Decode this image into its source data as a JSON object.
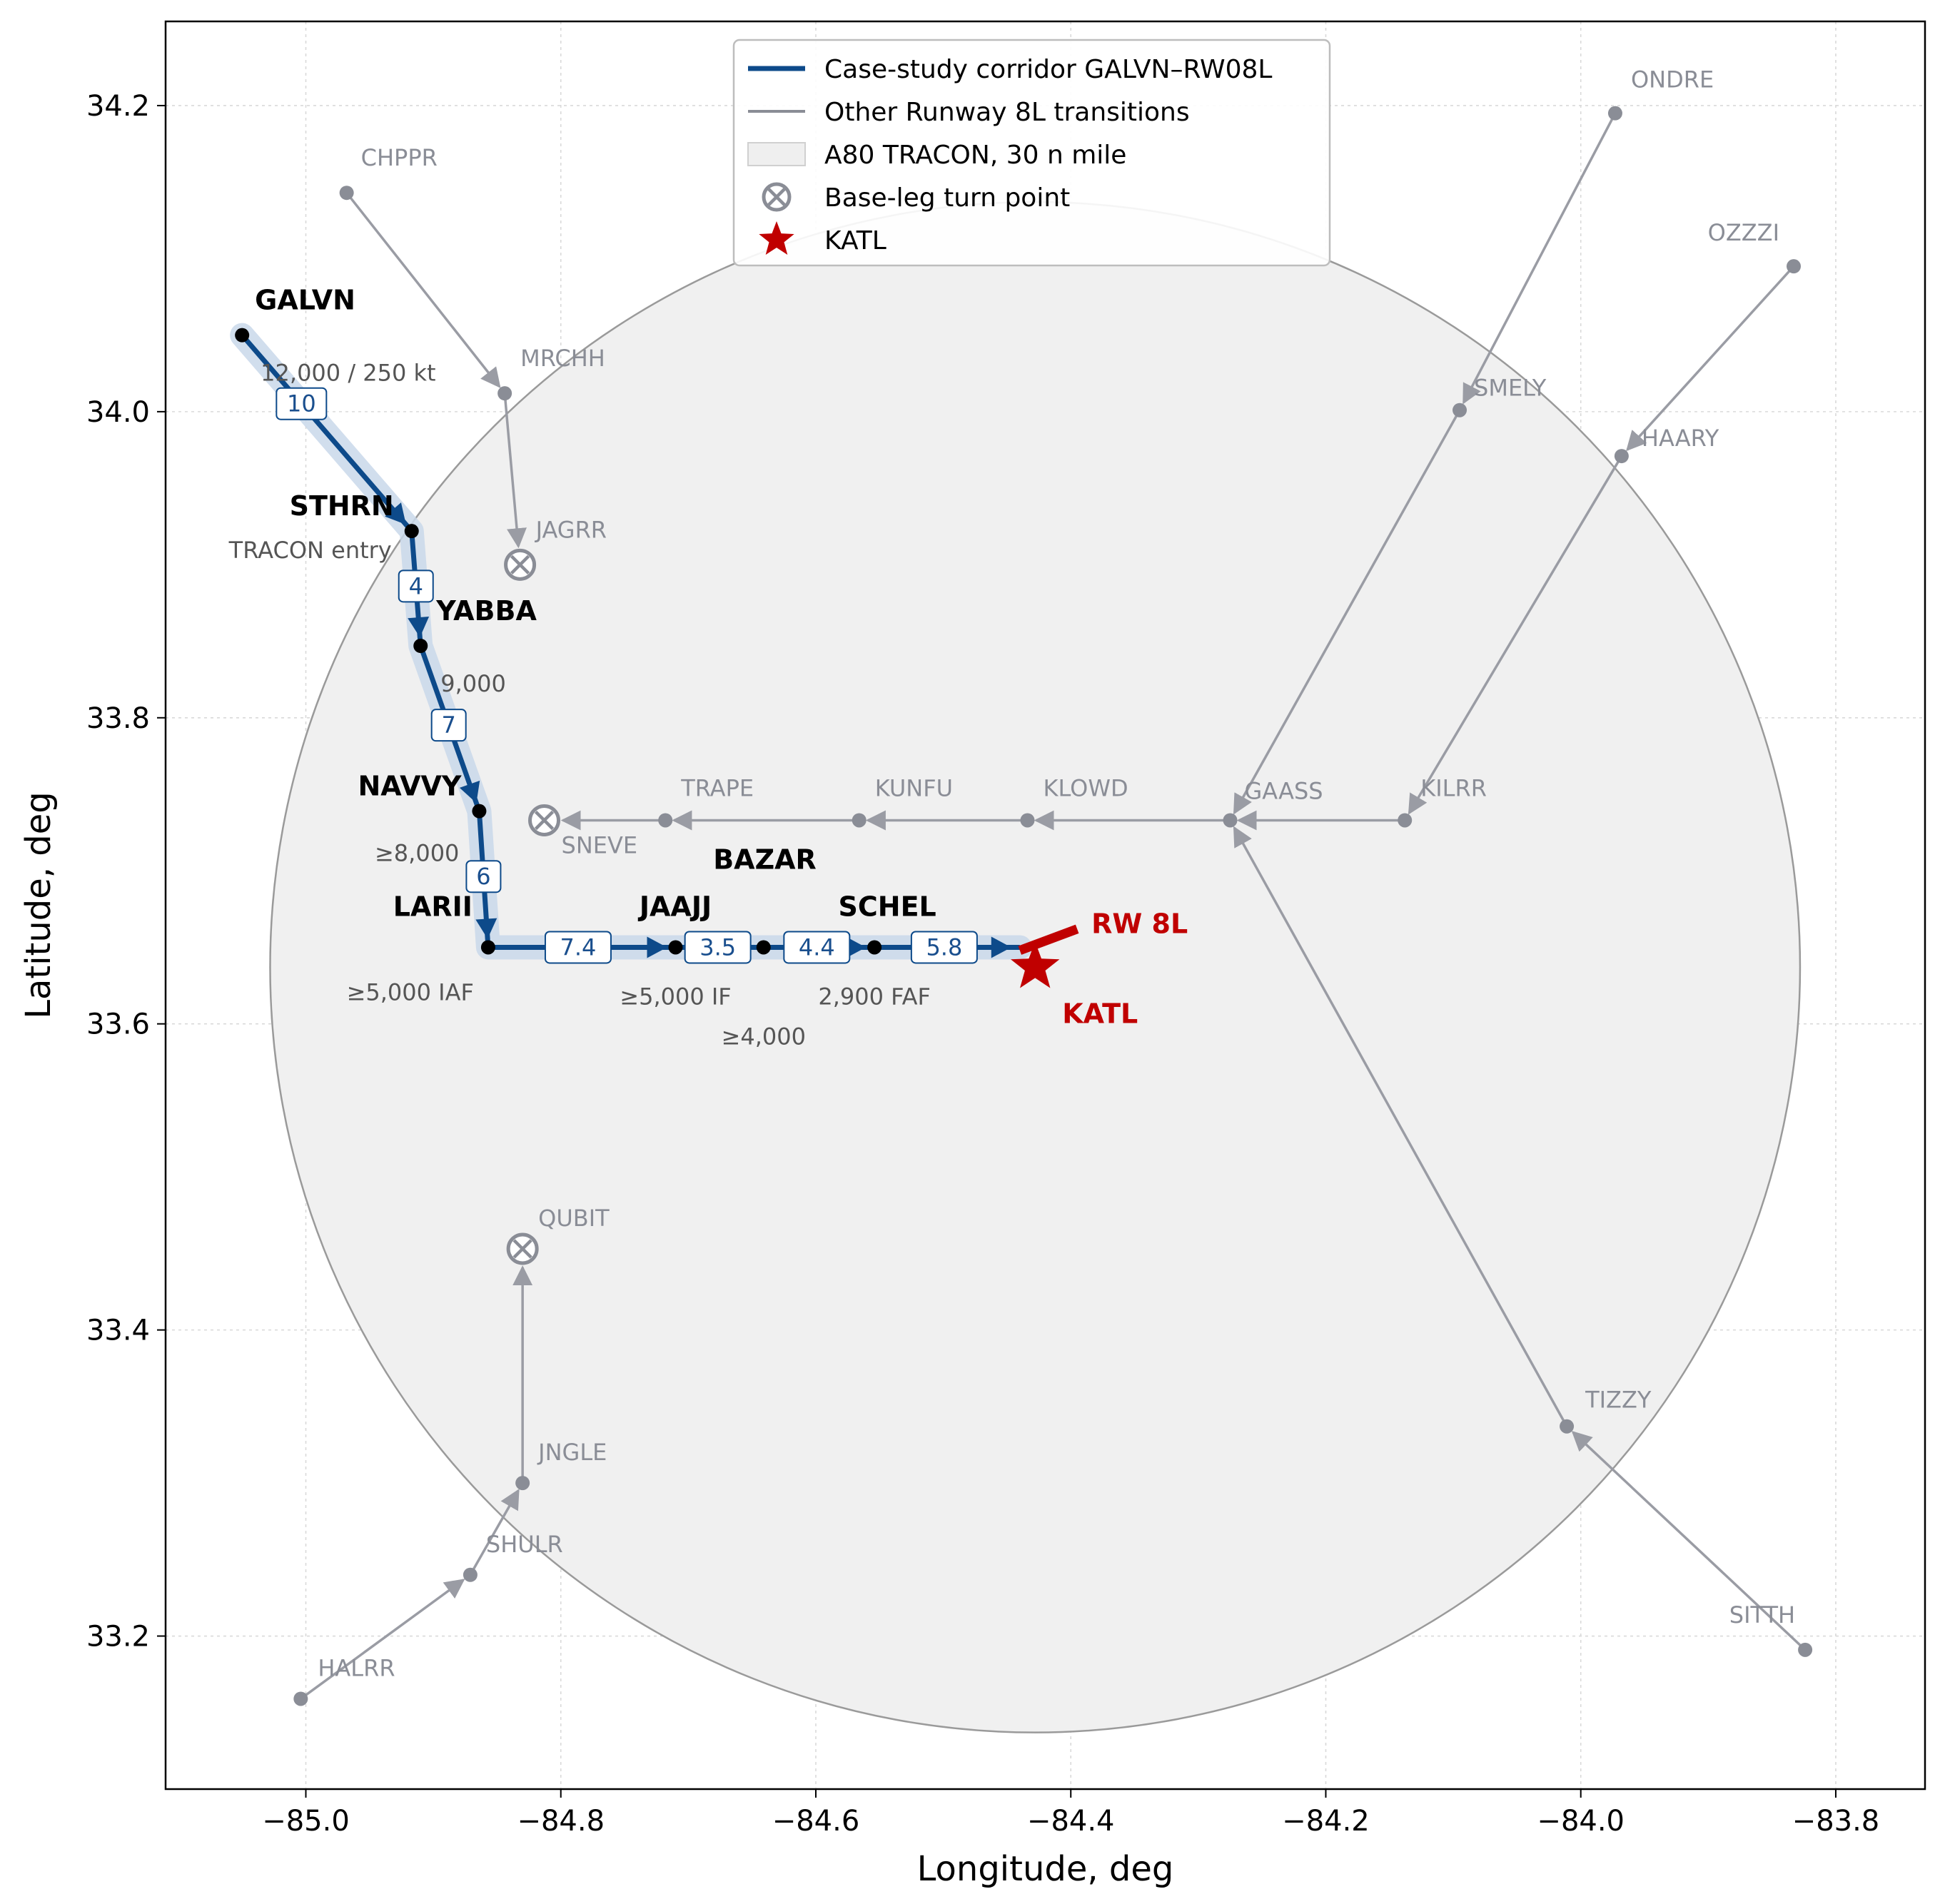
{
  "chart_data": {
    "type": "scatter",
    "xlabel": "Longitude, deg",
    "ylabel": "Latitude, deg",
    "xlim": [
      -85.11,
      -83.73
    ],
    "ylim": [
      33.1,
      34.255
    ],
    "xticks": [
      -85.0,
      -84.8,
      -84.6,
      -84.4,
      -84.2,
      -84.0,
      -83.8
    ],
    "xtick_labels": [
      "−85.0",
      "−84.8",
      "−84.6",
      "−84.4",
      "−84.2",
      "−84.0",
      "−83.8"
    ],
    "yticks": [
      33.2,
      33.4,
      33.6,
      33.8,
      34.0,
      34.2
    ],
    "ytick_labels": [
      "33.2",
      "33.4",
      "33.6",
      "33.8",
      "34.0",
      "34.2"
    ],
    "grid": true,
    "legend_position": "top-center",
    "legend": [
      {
        "label": "Case-study corridor GALVN–RW08L",
        "kind": "line",
        "color": "#0d4a8a"
      },
      {
        "label": "Other Runway 8L transitions",
        "kind": "line",
        "color": "#8a8d96"
      },
      {
        "label": "A80 TRACON, 30 n mile",
        "kind": "patch",
        "color": "#efefef"
      },
      {
        "label": "Base-leg turn point",
        "kind": "turn-marker",
        "color": "#8a8d96"
      },
      {
        "label": "KATL",
        "kind": "star",
        "color": "#c00000"
      }
    ],
    "tracon": {
      "center": [
        -84.428,
        33.637
      ],
      "radius_deg_lon": 0.6,
      "radius_deg_lat": 0.5
    },
    "corridor": {
      "color": "#0d4a8a",
      "waypoints": [
        {
          "name": "GALVN",
          "lon": -85.05,
          "lat": 34.05,
          "annotation": "12,000 / 250 kt"
        },
        {
          "name": "STHRN",
          "lon": -84.917,
          "lat": 33.922,
          "annotation": "TRACON entry"
        },
        {
          "name": "YABBA",
          "lon": -84.91,
          "lat": 33.847,
          "annotation": "9,000"
        },
        {
          "name": "NAVVY",
          "lon": -84.864,
          "lat": 33.739,
          "annotation": "≥8,000"
        },
        {
          "name": "LARII",
          "lon": -84.857,
          "lat": 33.65,
          "annotation": "≥5,000 IAF"
        },
        {
          "name": "JAAJJ",
          "lon": -84.71,
          "lat": 33.65,
          "annotation": "≥5,000 IF"
        },
        {
          "name": "BAZAR",
          "lon": -84.641,
          "lat": 33.65,
          "annotation": "≥4,000"
        },
        {
          "name": "SCHEL",
          "lon": -84.554,
          "lat": 33.65,
          "annotation": "2,900 FAF"
        }
      ],
      "end": {
        "lon": -84.44,
        "lat": 33.65
      },
      "segment_distances": [
        "10",
        "4",
        "7",
        "6",
        "7.4",
        "3.5",
        "4.4",
        "5.8"
      ]
    },
    "runway": {
      "label": "RW 8L",
      "from": [
        -84.44,
        33.648
      ],
      "to": [
        -84.395,
        33.662
      ],
      "color": "#c00000"
    },
    "airport": {
      "name": "KATL",
      "lon": -84.428,
      "lat": 33.637,
      "color": "#c00000"
    },
    "other_transitions": [
      {
        "points": [
          "CHPPR",
          "MRCHH",
          "JAGRR"
        ]
      },
      {
        "points": [
          "ONDRE",
          "SMELY",
          "GAASS"
        ]
      },
      {
        "points": [
          "OZZZI",
          "HAARY",
          "KILRR"
        ]
      },
      {
        "points": [
          "KILRR",
          "GAASS",
          "KLOWD",
          "KUNFU",
          "TRAPE",
          "SNEVE"
        ]
      },
      {
        "points": [
          "SITTH",
          "TIZZY",
          "GAASS"
        ]
      },
      {
        "points": [
          "HALRR",
          "SHULR",
          "JNGLE",
          "QUBIT"
        ]
      }
    ],
    "other_waypoints": [
      {
        "name": "CHPPR",
        "lon": -84.968,
        "lat": 34.143
      },
      {
        "name": "MRCHH",
        "lon": -84.844,
        "lat": 34.012
      },
      {
        "name": "JAGRR",
        "lon": -84.832,
        "lat": 33.9,
        "turn": true
      },
      {
        "name": "ONDRE",
        "lon": -83.973,
        "lat": 34.195
      },
      {
        "name": "SMELY",
        "lon": -84.095,
        "lat": 34.001
      },
      {
        "name": "GAASS",
        "lon": -84.275,
        "lat": 33.733
      },
      {
        "name": "OZZZI",
        "lon": -83.833,
        "lat": 34.095
      },
      {
        "name": "HAARY",
        "lon": -83.968,
        "lat": 33.971
      },
      {
        "name": "KILRR",
        "lon": -84.138,
        "lat": 33.733
      },
      {
        "name": "KLOWD",
        "lon": -84.434,
        "lat": 33.733
      },
      {
        "name": "KUNFU",
        "lon": -84.566,
        "lat": 33.733
      },
      {
        "name": "TRAPE",
        "lon": -84.718,
        "lat": 33.733
      },
      {
        "name": "SNEVE",
        "lon": -84.813,
        "lat": 33.733,
        "turn": true
      },
      {
        "name": "SITTH",
        "lon": -83.824,
        "lat": 33.191
      },
      {
        "name": "TIZZY",
        "lon": -84.011,
        "lat": 33.337
      },
      {
        "name": "HALRR",
        "lon": -85.004,
        "lat": 33.159
      },
      {
        "name": "SHULR",
        "lon": -84.871,
        "lat": 33.24
      },
      {
        "name": "JNGLE",
        "lon": -84.83,
        "lat": 33.3
      },
      {
        "name": "QUBIT",
        "lon": -84.83,
        "lat": 33.453,
        "turn": true
      }
    ]
  }
}
